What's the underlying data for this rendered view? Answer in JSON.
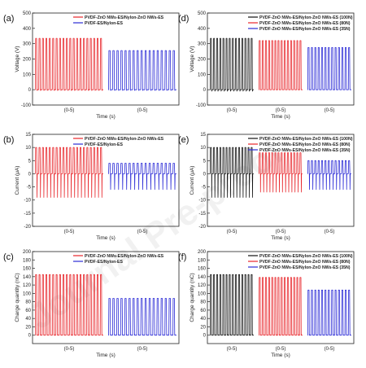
{
  "figure": {
    "watermark": "Journal Pre-proof"
  },
  "colors": {
    "red": "#e8252a",
    "blue": "#2b2bd6",
    "black": "#111111",
    "axis": "#222222"
  },
  "chart_data": [
    {
      "panel_label": "(a)",
      "type": "line",
      "ylabel": "Voltage (V)",
      "xlabel": "Time (s)",
      "ylim": [
        -100,
        500
      ],
      "yticks": [
        -100,
        0,
        100,
        200,
        300,
        400,
        500
      ],
      "segment_labels": [
        "(0-5)",
        "(0-5)"
      ],
      "series": [
        {
          "name": "PVDF-ZnO NWs-ES/Nylon-ZnO NWs-ES",
          "color": "red",
          "peak": 335,
          "valley": -5,
          "pulses": 20
        },
        {
          "name": "PVDF-ES/Nylon-ES",
          "color": "blue",
          "peak": 255,
          "valley": -5,
          "pulses": 17
        }
      ]
    },
    {
      "panel_label": "(b)",
      "type": "line",
      "ylabel": "Current (μA)",
      "xlabel": "Time (s)",
      "ylim": [
        -20,
        15
      ],
      "yticks": [
        -20,
        -15,
        -10,
        -5,
        0,
        5,
        10,
        15
      ],
      "segment_labels": [
        "(0-5)",
        "(0-5)"
      ],
      "series": [
        {
          "name": "PVDF-ZnO NWs-ES/Nylon-ZnO NWs-ES",
          "color": "red",
          "peak": 10,
          "valley": -9,
          "pulses": 20
        },
        {
          "name": "PVDF-ES/Nylon-ES",
          "color": "blue",
          "peak": 4,
          "valley": -6,
          "pulses": 17
        }
      ]
    },
    {
      "panel_label": "(c)",
      "type": "line",
      "ylabel": "Charge quantity (nC)",
      "xlabel": "Time (s)",
      "ylim": [
        -20,
        200
      ],
      "yticks": [
        0,
        20,
        40,
        60,
        80,
        100,
        120,
        140,
        160,
        180,
        200
      ],
      "segment_labels": [
        "(0-5)",
        "(0-5)"
      ],
      "series": [
        {
          "name": "PVDF-ZnO NWs-ES/Nylon-ZnO NWs-ES",
          "color": "red",
          "peak": 145,
          "valley": 2,
          "pulses": 20
        },
        {
          "name": "PVDF-ES/Nylon-ES",
          "color": "blue",
          "peak": 88,
          "valley": 2,
          "pulses": 17
        }
      ]
    },
    {
      "panel_label": "(d)",
      "type": "line",
      "ylabel": "Voltage (V)",
      "xlabel": "Time (s)",
      "ylim": [
        -100,
        500
      ],
      "yticks": [
        -100,
        0,
        100,
        200,
        300,
        400,
        500
      ],
      "segment_labels": [
        "(0-5)",
        "(0-5)",
        "(0-5)"
      ],
      "series": [
        {
          "name": "PVDF-ZnO NWs-ES/Nylon-ZnO NWs-ES (100N)",
          "color": "black",
          "peak": 335,
          "valley": -10,
          "pulses": 14
        },
        {
          "name": "PVDF-ZnO NWs-ES/Nylon-ZnO NWs-ES (80N)",
          "color": "red",
          "peak": 320,
          "valley": 0,
          "pulses": 14
        },
        {
          "name": "PVDF-ZnO NWs-ES/Nylon-ZnO NWs-ES (35N)",
          "color": "blue",
          "peak": 275,
          "valley": 0,
          "pulses": 13
        }
      ]
    },
    {
      "panel_label": "(e)",
      "type": "line",
      "ylabel": "Current (μA)",
      "xlabel": "Time (s)",
      "ylim": [
        -20,
        15
      ],
      "yticks": [
        -20,
        -15,
        -10,
        -5,
        0,
        5,
        10,
        15
      ],
      "segment_labels": [
        "(0-5)",
        "(0-5)",
        "(0-5)"
      ],
      "series": [
        {
          "name": "PVDF-ZnO NWs-ES/Nylon-ZnO NWs-ES (100N)",
          "color": "black",
          "peak": 10,
          "valley": -9,
          "pulses": 14
        },
        {
          "name": "PVDF-ZnO NWs-ES/Nylon-ZnO NWs-ES (80N)",
          "color": "red",
          "peak": 8,
          "valley": -7,
          "pulses": 14
        },
        {
          "name": "PVDF-ZnO NWs-ES/Nylon-ZnO NWs-ES (35N)",
          "color": "blue",
          "peak": 5,
          "valley": -6,
          "pulses": 13
        }
      ]
    },
    {
      "panel_label": "(f)",
      "type": "line",
      "ylabel": "Charge quantity (nC)",
      "xlabel": "Time (s)",
      "ylim": [
        -20,
        200
      ],
      "yticks": [
        0,
        20,
        40,
        60,
        80,
        100,
        120,
        140,
        160,
        180,
        200
      ],
      "segment_labels": [
        "(0-5)",
        "(0-5)",
        "(0-5)"
      ],
      "series": [
        {
          "name": "PVDF-ZnO NWs-ES/Nylon-ZnO NWs-ES (100N)",
          "color": "black",
          "peak": 145,
          "valley": 2,
          "pulses": 14
        },
        {
          "name": "PVDF-ZnO NWs-ES/Nylon-ZnO NWs-ES (80N)",
          "color": "red",
          "peak": 138,
          "valley": 2,
          "pulses": 14
        },
        {
          "name": "PVDF-ZnO NWs-ES/Nylon-ZnO NWs-ES (35N)",
          "color": "blue",
          "peak": 108,
          "valley": 2,
          "pulses": 13
        }
      ]
    }
  ]
}
